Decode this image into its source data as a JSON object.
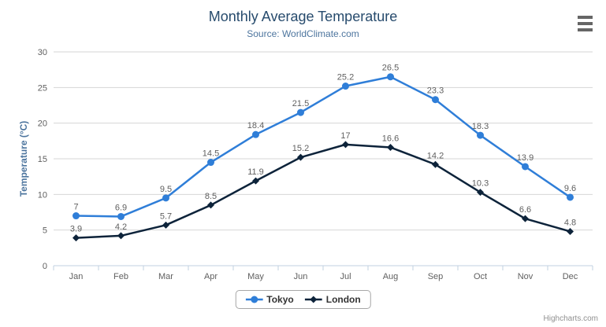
{
  "chart_data": {
    "type": "line",
    "title": "Monthly Average Temperature",
    "subtitle": "Source: WorldClimate.com",
    "categories": [
      "Jan",
      "Feb",
      "Mar",
      "Apr",
      "May",
      "Jun",
      "Jul",
      "Aug",
      "Sep",
      "Oct",
      "Nov",
      "Dec"
    ],
    "series": [
      {
        "name": "Tokyo",
        "color": "#2f7ed8",
        "marker": "circle",
        "values": [
          7,
          6.9,
          9.5,
          14.5,
          18.4,
          21.5,
          25.2,
          26.5,
          23.3,
          18.3,
          13.9,
          9.6
        ]
      },
      {
        "name": "London",
        "color": "#0d233a",
        "marker": "diamond",
        "values": [
          3.9,
          4.2,
          5.7,
          8.5,
          11.9,
          15.2,
          17,
          16.6,
          14.2,
          10.3,
          6.6,
          4.8
        ]
      }
    ],
    "xlabel": "",
    "ylabel": "Temperature (°C)",
    "ylim": [
      0,
      30
    ],
    "ytick_interval": 5,
    "grid": true,
    "data_labels": true,
    "legend_position": "bottom-center"
  },
  "credits": {
    "label": "Highcharts.com"
  },
  "colors": {
    "title": "#274b6d",
    "subtitle": "#4d759e",
    "axis_label": "#606060",
    "data_label": "#606060",
    "grid_line": "#d6d6d6",
    "axis_line": "#c0d0e0",
    "legend_text": "#333333",
    "credits_text": "#909090",
    "menu_icon": "#666666"
  }
}
